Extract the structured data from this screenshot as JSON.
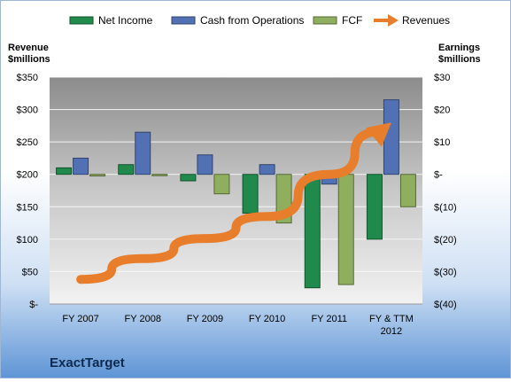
{
  "chart_data": {
    "type": "bar",
    "categories": [
      "FY 2007",
      "FY 2008",
      "FY 2009",
      "FY 2010",
      "FY 2011",
      "FY & TTM\n2012"
    ],
    "series": [
      {
        "name": "Net Income",
        "axis": "right",
        "values": [
          2,
          3,
          -2,
          -12,
          -35,
          -20
        ],
        "color": "#1f8a4c"
      },
      {
        "name": "Cash from Operations",
        "axis": "right",
        "values": [
          5,
          13,
          6,
          3,
          -3,
          23
        ],
        "color": "#5271b5"
      },
      {
        "name": "FCF",
        "axis": "right",
        "values": [
          -0.5,
          0,
          -6,
          -15,
          -34,
          -10
        ],
        "color": "#8fae5e"
      }
    ],
    "line_series": {
      "name": "Revenues",
      "axis": "left",
      "type": "arrow",
      "values": [
        38,
        70,
        101,
        135,
        200,
        280
      ],
      "color": "#e87e2c"
    },
    "left_axis": {
      "label": "Revenue\n$millions",
      "ylim": [
        0,
        350
      ],
      "ticks": [
        "$350",
        "$300",
        "$250",
        "$200",
        "$150",
        "$100",
        "$50",
        "$-"
      ]
    },
    "right_axis": {
      "label": "Earnings\n$millions",
      "ylim": [
        -40,
        30
      ],
      "ticks": [
        "$30",
        "$20",
        "$10",
        "$-",
        "$(10)",
        "$(20)",
        "$(30)",
        "$(40)"
      ]
    },
    "legend_position": "top",
    "grid": true,
    "company_label": "ExactTarget"
  }
}
